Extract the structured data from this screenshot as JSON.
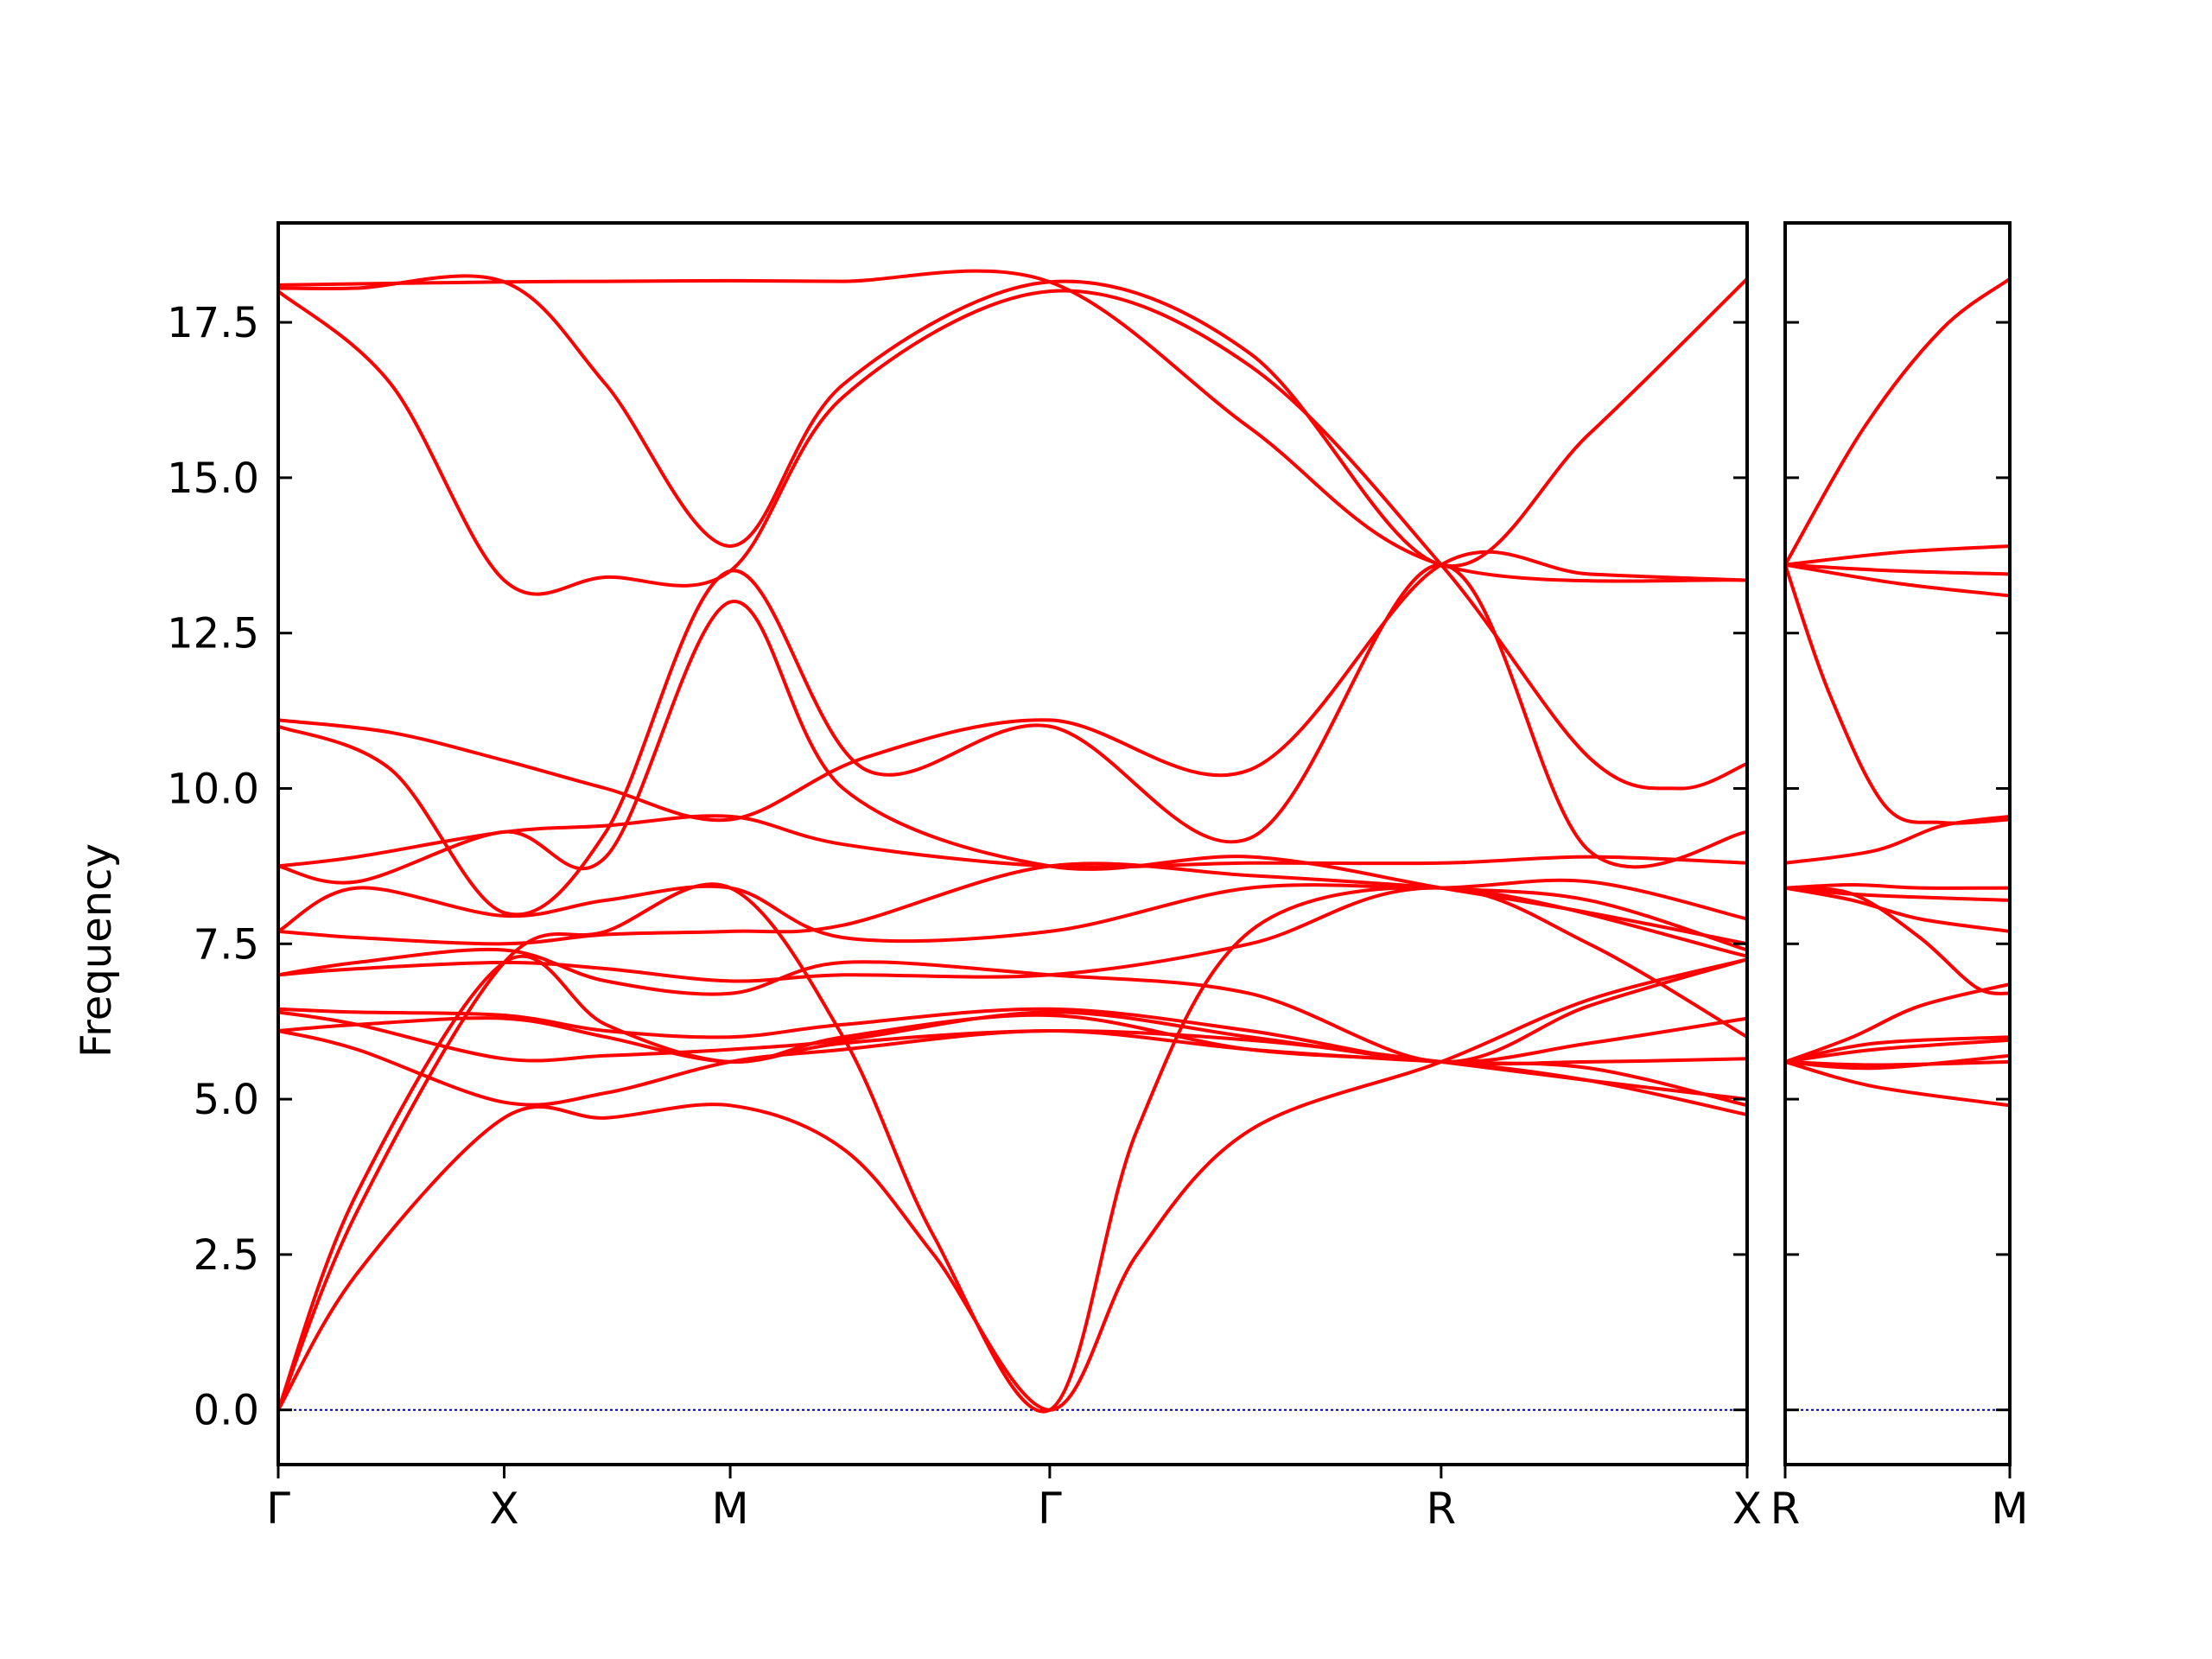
{
  "chart_data": {
    "type": "line",
    "title": "",
    "ylabel": "Frequency",
    "ylim": [
      -0.88,
      19.1
    ],
    "yticks": [
      "0.0",
      "2.5",
      "5.0",
      "7.5",
      "10.0",
      "12.5",
      "15.0",
      "17.5"
    ],
    "colors": {
      "bands": "#ff0000",
      "zero_line": "#00008b",
      "axes": "#000000"
    },
    "panels": [
      {
        "name": "main",
        "x_range": [
          0,
          6.5
        ],
        "ticks": [
          {
            "label": "Γ",
            "x": 0
          },
          {
            "label": "X",
            "x": 1
          },
          {
            "label": "M",
            "x": 2
          },
          {
            "label": "Γ",
            "x": 3.414
          },
          {
            "label": "R",
            "x": 5.146
          },
          {
            "label": "X",
            "x": 6.56
          }
        ],
        "bands": [
          {
            "x": [
              0,
              0.35,
              1,
              1.45,
              2,
              2.5,
              3.414,
              4.3,
              5.146,
              6.56
            ],
            "y": [
              18.1,
              18.12,
              18.15,
              18.16,
              18.17,
              18.16,
              18.15,
              15.8,
              13.6,
              13.35
            ]
          },
          {
            "x": [
              0,
              0.35,
              1,
              1.45,
              2,
              2.5,
              3.414,
              4.3,
              5.146,
              5.8,
              6.56
            ],
            "y": [
              18.05,
              18.05,
              18.15,
              16.5,
              13.9,
              16.5,
              18.15,
              17.0,
              13.6,
              15.7,
              18.2
            ]
          },
          {
            "x": [
              0,
              0.5,
              1,
              1.45,
              2,
              2.5,
              3.414,
              4.3,
              5.146,
              5.8,
              6.2,
              6.56
            ],
            "y": [
              18.0,
              16.5,
              13.35,
              13.4,
              13.5,
              16.3,
              18.0,
              16.8,
              13.6,
              10.5,
              10.0,
              10.4
            ]
          },
          {
            "x": [
              0,
              0.5,
              1,
              1.45,
              2,
              2.6,
              3.414,
              4.3,
              5.146,
              5.8,
              6.56
            ],
            "y": [
              11.1,
              10.9,
              10.45,
              10.0,
              9.5,
              10.5,
              11.1,
              10.3,
              13.6,
              13.45,
              13.35
            ]
          },
          {
            "x": [
              0,
              0.5,
              1,
              1.45,
              2,
              2.6,
              3.414,
              4.3,
              5.146,
              5.8,
              6.56
            ],
            "y": [
              11.0,
              10.3,
              8.0,
              9.3,
              13.5,
              10.3,
              11.0,
              9.2,
              13.6,
              9.0,
              9.3
            ]
          },
          {
            "x": [
              0,
              0.35,
              1,
              1.45,
              2,
              2.5,
              3.414,
              4.3,
              5.146,
              5.8,
              6.56
            ],
            "y": [
              8.75,
              8.9,
              9.3,
              9.4,
              9.55,
              9.1,
              8.75,
              8.8,
              8.8,
              8.9,
              8.8
            ]
          },
          {
            "x": [
              0,
              0.35,
              1,
              1.45,
              2,
              2.5,
              3.414,
              4.3,
              5.146,
              5.8,
              6.56
            ],
            "y": [
              8.75,
              8.5,
              9.3,
              8.9,
              13.0,
              10.0,
              8.75,
              8.9,
              8.4,
              8.0,
              7.5
            ]
          },
          {
            "x": [
              0,
              0.35,
              1,
              1.45,
              2,
              2.5,
              3.414,
              4.3,
              5.146,
              5.8,
              6.56
            ],
            "y": [
              7.7,
              8.4,
              7.95,
              8.2,
              8.4,
              7.6,
              7.7,
              8.4,
              8.4,
              8.5,
              7.9
            ]
          },
          {
            "x": [
              0,
              0.35,
              1,
              1.45,
              2,
              2.5,
              3.414,
              4.3,
              5.146,
              5.8,
              6.56
            ],
            "y": [
              7.7,
              7.6,
              7.5,
              7.65,
              7.7,
              7.8,
              8.75,
              8.6,
              8.4,
              8.2,
              7.4
            ]
          },
          {
            "x": [
              0,
              0.35,
              1,
              1.45,
              2,
              2.5,
              3.414,
              4.3,
              5.146,
              6.56
            ],
            "y": [
              7.0,
              7.1,
              7.2,
              7.1,
              6.9,
              7.0,
              7.0,
              7.5,
              8.4,
              7.3
            ]
          },
          {
            "x": [
              0,
              0.35,
              1,
              1.45,
              2,
              2.5,
              3.414,
              4.3,
              5.146,
              5.8,
              6.56
            ],
            "y": [
              7.0,
              7.2,
              7.4,
              6.9,
              6.7,
              7.2,
              7.0,
              6.7,
              5.6,
              6.5,
              7.25
            ]
          },
          {
            "x": [
              0,
              0.35,
              1,
              1.45,
              2,
              2.5,
              3.414,
              4.3,
              5.146,
              5.8,
              6.56
            ],
            "y": [
              6.45,
              6.4,
              6.35,
              6.1,
              6.0,
              6.2,
              6.45,
              6.1,
              5.6,
              5.9,
              6.3
            ]
          },
          {
            "x": [
              0,
              0.35,
              1,
              1.45,
              2,
              2.5,
              3.414,
              4.3,
              5.146,
              5.8,
              6.56
            ],
            "y": [
              6.4,
              6.2,
              5.65,
              5.7,
              5.8,
              5.95,
              6.4,
              6.0,
              5.6,
              5.6,
              5.65
            ]
          },
          {
            "x": [
              0,
              0.35,
              1,
              1.45,
              2,
              2.5,
              3.414,
              4.3,
              5.146,
              5.8,
              6.56
            ],
            "y": [
              6.1,
              6.2,
              6.3,
              6.0,
              5.6,
              5.9,
              6.1,
              5.95,
              5.6,
              5.3,
              5.0
            ]
          },
          {
            "x": [
              0,
              0.35,
              1,
              1.45,
              2,
              2.5,
              3.414,
              4.3,
              5.146,
              5.8,
              6.56
            ],
            "y": [
              6.1,
              5.8,
              4.95,
              5.1,
              5.6,
              5.8,
              6.1,
              5.8,
              5.6,
              5.5,
              4.9
            ]
          },
          {
            "x": [
              0,
              0.35,
              1,
              1.45,
              2,
              2.5,
              3.414,
              4.3,
              5.146,
              5.8,
              6.56
            ],
            "y": [
              0,
              3.5,
              7.2,
              6.2,
              5.6,
              6.0,
              6.35,
              5.8,
              5.6,
              5.3,
              4.75
            ]
          },
          {
            "x": [
              0,
              0.35,
              1,
              1.45,
              2,
              2.5,
              2.9,
              3.414,
              3.8,
              4.3,
              5.146,
              5.8,
              6.56
            ],
            "y": [
              0,
              3.2,
              7.2,
              7.7,
              8.4,
              6.0,
              2.8,
              0,
              4.5,
              7.7,
              8.4,
              7.5,
              6.0
            ]
          },
          {
            "x": [
              0,
              0.35,
              1,
              1.45,
              2,
              2.5,
              2.9,
              3.414,
              3.8,
              4.3,
              5.146,
              5.8,
              6.56
            ],
            "y": [
              0,
              2.2,
              4.7,
              4.7,
              4.9,
              4.2,
              2.5,
              0,
              2.5,
              4.5,
              5.6,
              6.6,
              7.25
            ]
          }
        ]
      },
      {
        "name": "right",
        "x_range": [
          0,
          1
        ],
        "ticks": [
          {
            "label": "R",
            "x": 0
          },
          {
            "label": "M",
            "x": 1
          }
        ],
        "bands": [
          {
            "x": [
              0,
              0.35,
              0.7,
              1
            ],
            "y": [
              13.6,
              15.8,
              17.4,
              18.2
            ]
          },
          {
            "x": [
              0,
              0.5,
              1
            ],
            "y": [
              13.6,
              13.8,
              13.9
            ]
          },
          {
            "x": [
              0,
              0.5,
              1
            ],
            "y": [
              13.6,
              13.5,
              13.45
            ]
          },
          {
            "x": [
              0,
              0.5,
              1
            ],
            "y": [
              13.6,
              13.3,
              13.1
            ]
          },
          {
            "x": [
              0,
              0.2,
              0.45,
              0.7,
              1
            ],
            "y": [
              13.6,
              11.5,
              9.7,
              9.45,
              9.5
            ]
          },
          {
            "x": [
              0,
              0.4,
              0.7,
              1
            ],
            "y": [
              8.8,
              9.0,
              9.4,
              9.55
            ]
          },
          {
            "x": [
              0,
              0.3,
              0.6,
              1
            ],
            "y": [
              8.4,
              8.45,
              8.4,
              8.4
            ]
          },
          {
            "x": [
              0,
              0.3,
              0.6,
              1
            ],
            "y": [
              8.4,
              8.3,
              8.25,
              8.2
            ]
          },
          {
            "x": [
              0,
              0.3,
              0.6,
              1
            ],
            "y": [
              8.4,
              8.2,
              7.9,
              7.7
            ]
          },
          {
            "x": [
              0,
              0.3,
              0.6,
              0.85,
              1
            ],
            "y": [
              8.4,
              8.3,
              7.6,
              6.8,
              6.7
            ]
          },
          {
            "x": [
              0,
              0.3,
              0.6,
              1
            ],
            "y": [
              5.6,
              6.0,
              6.5,
              6.85
            ]
          },
          {
            "x": [
              0,
              0.4,
              1
            ],
            "y": [
              5.6,
              5.9,
              6.0
            ]
          },
          {
            "x": [
              0,
              0.4,
              1
            ],
            "y": [
              5.6,
              5.8,
              5.95
            ]
          },
          {
            "x": [
              0,
              0.4,
              1
            ],
            "y": [
              5.6,
              5.5,
              5.7
            ]
          },
          {
            "x": [
              0,
              0.4,
              1
            ],
            "y": [
              5.6,
              5.55,
              5.6
            ]
          },
          {
            "x": [
              0,
              0.4,
              1
            ],
            "y": [
              5.6,
              5.2,
              4.9
            ]
          }
        ]
      }
    ]
  }
}
